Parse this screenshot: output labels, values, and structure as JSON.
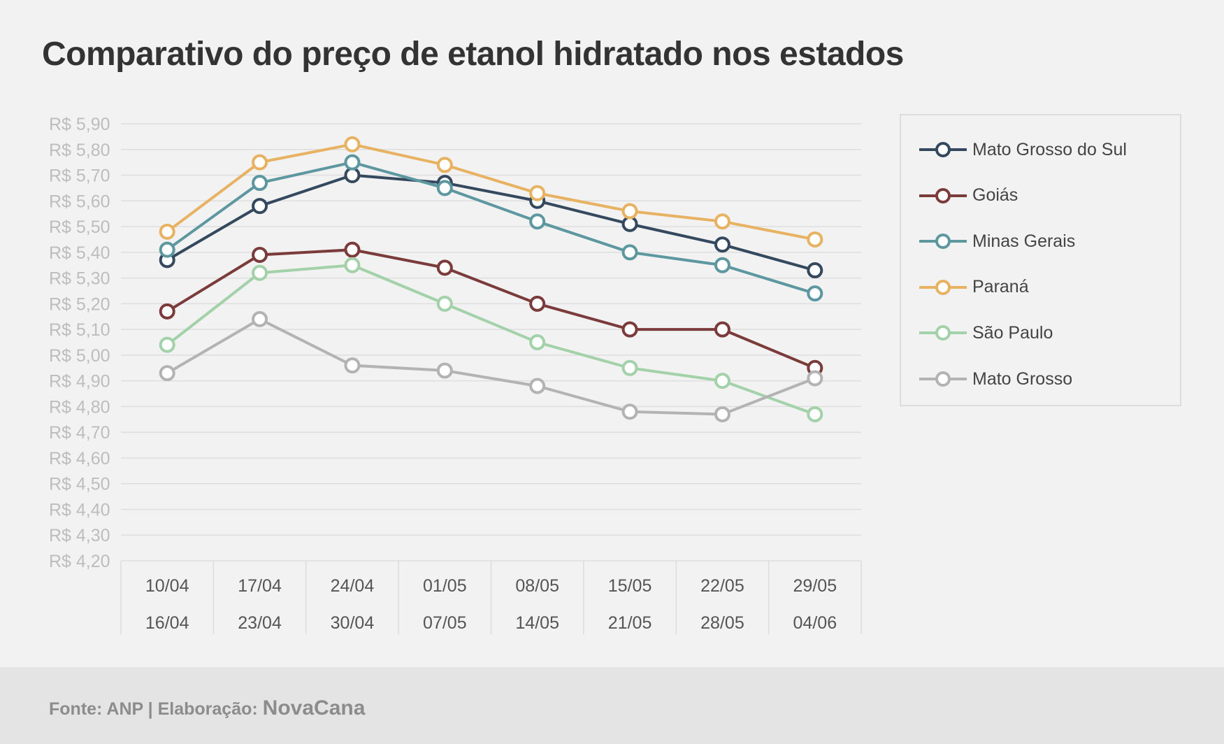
{
  "chart_data": {
    "type": "line",
    "title": "Comparativo do preço de etanol hidratado nos estados",
    "ylim": [
      4.2,
      5.9
    ],
    "y_ticks": [
      "R$ 5,90",
      "R$ 5,80",
      "R$ 5,70",
      "R$ 5,60",
      "R$ 5,50",
      "R$ 5,40",
      "R$ 5,30",
      "R$ 5,20",
      "R$ 5,10",
      "R$ 5,00",
      "R$ 4,90",
      "R$ 4,80",
      "R$ 4,70",
      "R$ 4,60",
      "R$ 4,50",
      "R$ 4,40",
      "R$ 4,30",
      "R$ 4,20"
    ],
    "categories": [
      {
        "start": "10/04",
        "end": "16/04"
      },
      {
        "start": "17/04",
        "end": "23/04"
      },
      {
        "start": "24/04",
        "end": "30/04"
      },
      {
        "start": "01/05",
        "end": "07/05"
      },
      {
        "start": "08/05",
        "end": "14/05"
      },
      {
        "start": "15/05",
        "end": "21/05"
      },
      {
        "start": "22/05",
        "end": "28/05"
      },
      {
        "start": "29/05",
        "end": "04/06"
      }
    ],
    "grid": true,
    "legend_position": "right",
    "series": [
      {
        "name": "Mato Grosso do Sul",
        "color": "#34495e",
        "values": [
          5.37,
          5.58,
          5.7,
          5.67,
          5.6,
          5.51,
          5.43,
          5.33
        ]
      },
      {
        "name": "Goiás",
        "color": "#7b3b3b",
        "values": [
          5.17,
          5.39,
          5.41,
          5.34,
          5.2,
          5.1,
          5.1,
          4.95
        ]
      },
      {
        "name": "Minas Gerais",
        "color": "#5d97a0",
        "values": [
          5.41,
          5.67,
          5.75,
          5.65,
          5.52,
          5.4,
          5.35,
          5.24
        ]
      },
      {
        "name": "Paraná",
        "color": "#e8b263",
        "values": [
          5.48,
          5.75,
          5.82,
          5.74,
          5.63,
          5.56,
          5.52,
          5.45
        ]
      },
      {
        "name": "São Paulo",
        "color": "#a3d1a9",
        "values": [
          5.04,
          5.32,
          5.35,
          5.2,
          5.05,
          4.95,
          4.9,
          4.77
        ]
      },
      {
        "name": "Mato Grosso",
        "color": "#b3b3b3",
        "values": [
          4.93,
          5.14,
          4.96,
          4.94,
          4.88,
          4.78,
          4.77,
          4.91
        ]
      }
    ]
  },
  "footer": {
    "source": "Fonte: ANP | Elaboração:",
    "brand": "NovaCana"
  }
}
